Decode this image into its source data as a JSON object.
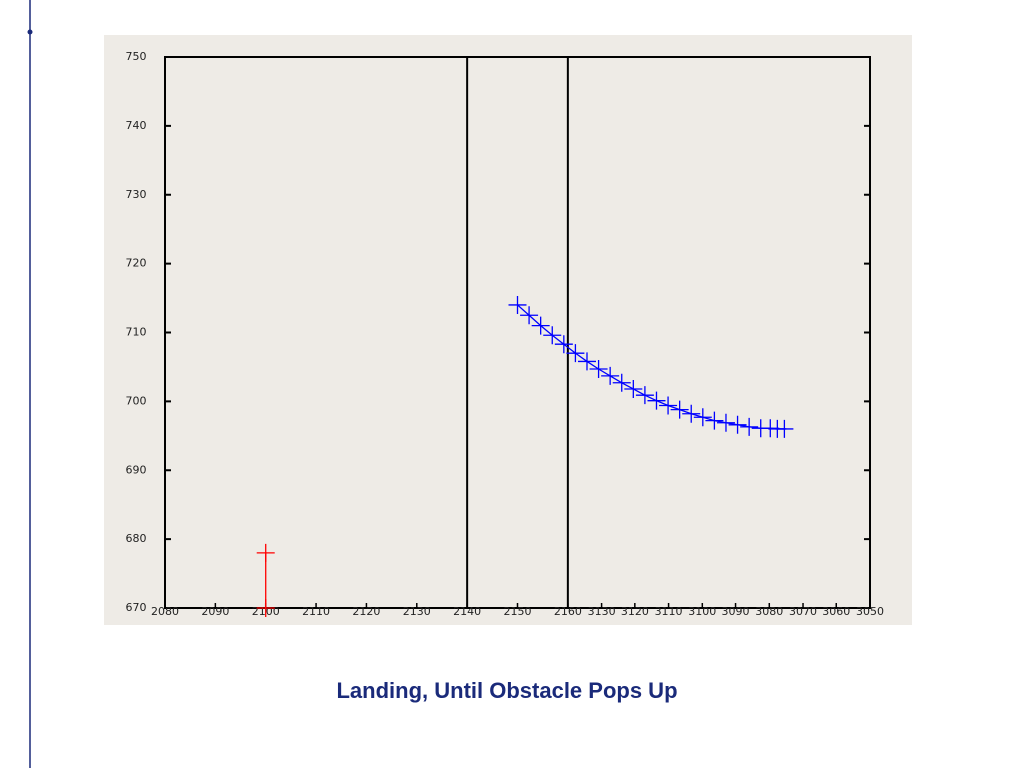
{
  "chart_data": {
    "type": "scatter",
    "title": "Landing, Until Obstacle Pops Up",
    "xlim": [
      2080,
      2220
    ],
    "xticks": [
      2080,
      2090,
      2100,
      2110,
      2120,
      2130,
      2140,
      2150,
      2160,
      {
        "value": 2166.7,
        "label": "3130"
      },
      {
        "value": 2173.3,
        "label": "3120"
      },
      {
        "value": 2180,
        "label": "3110"
      },
      {
        "value": 2186.7,
        "label": "3100"
      },
      {
        "value": 2193.3,
        "label": "3090"
      },
      {
        "value": 2200,
        "label": "3080"
      },
      {
        "value": 2206.7,
        "label": "3070"
      },
      {
        "value": 2213.3,
        "label": "3060"
      },
      {
        "value": 2220,
        "label": "3050"
      }
    ],
    "ylim": [
      670,
      750
    ],
    "yticks": [
      670,
      680,
      690,
      700,
      710,
      720,
      730,
      740,
      750
    ],
    "vlines": [
      2140,
      2160
    ],
    "series": [
      {
        "color": "#ff0000",
        "x": [
          2100,
          2100
        ],
        "values": [
          678,
          670
        ]
      },
      {
        "color": "#0000ff",
        "x": [
          2150,
          2152.3,
          2154.6,
          2156.9,
          2159.2,
          2161.5,
          2163.8,
          2166.1,
          2168.4,
          2170.7,
          2173,
          2175.3,
          2177.6,
          2179.9,
          2182.2,
          2184.5,
          2186.8,
          2189.1,
          2191.4,
          2193.7,
          2196,
          2198.3,
          2200.2,
          2201.6,
          2203
        ],
        "values": [
          714,
          712.5,
          711,
          709.6,
          708.3,
          707,
          705.8,
          704.7,
          703.7,
          702.7,
          701.8,
          700.9,
          700.1,
          699.4,
          698.8,
          698.2,
          697.7,
          697.2,
          696.9,
          696.6,
          696.3,
          696.1,
          696.1,
          696,
          696
        ]
      }
    ]
  }
}
